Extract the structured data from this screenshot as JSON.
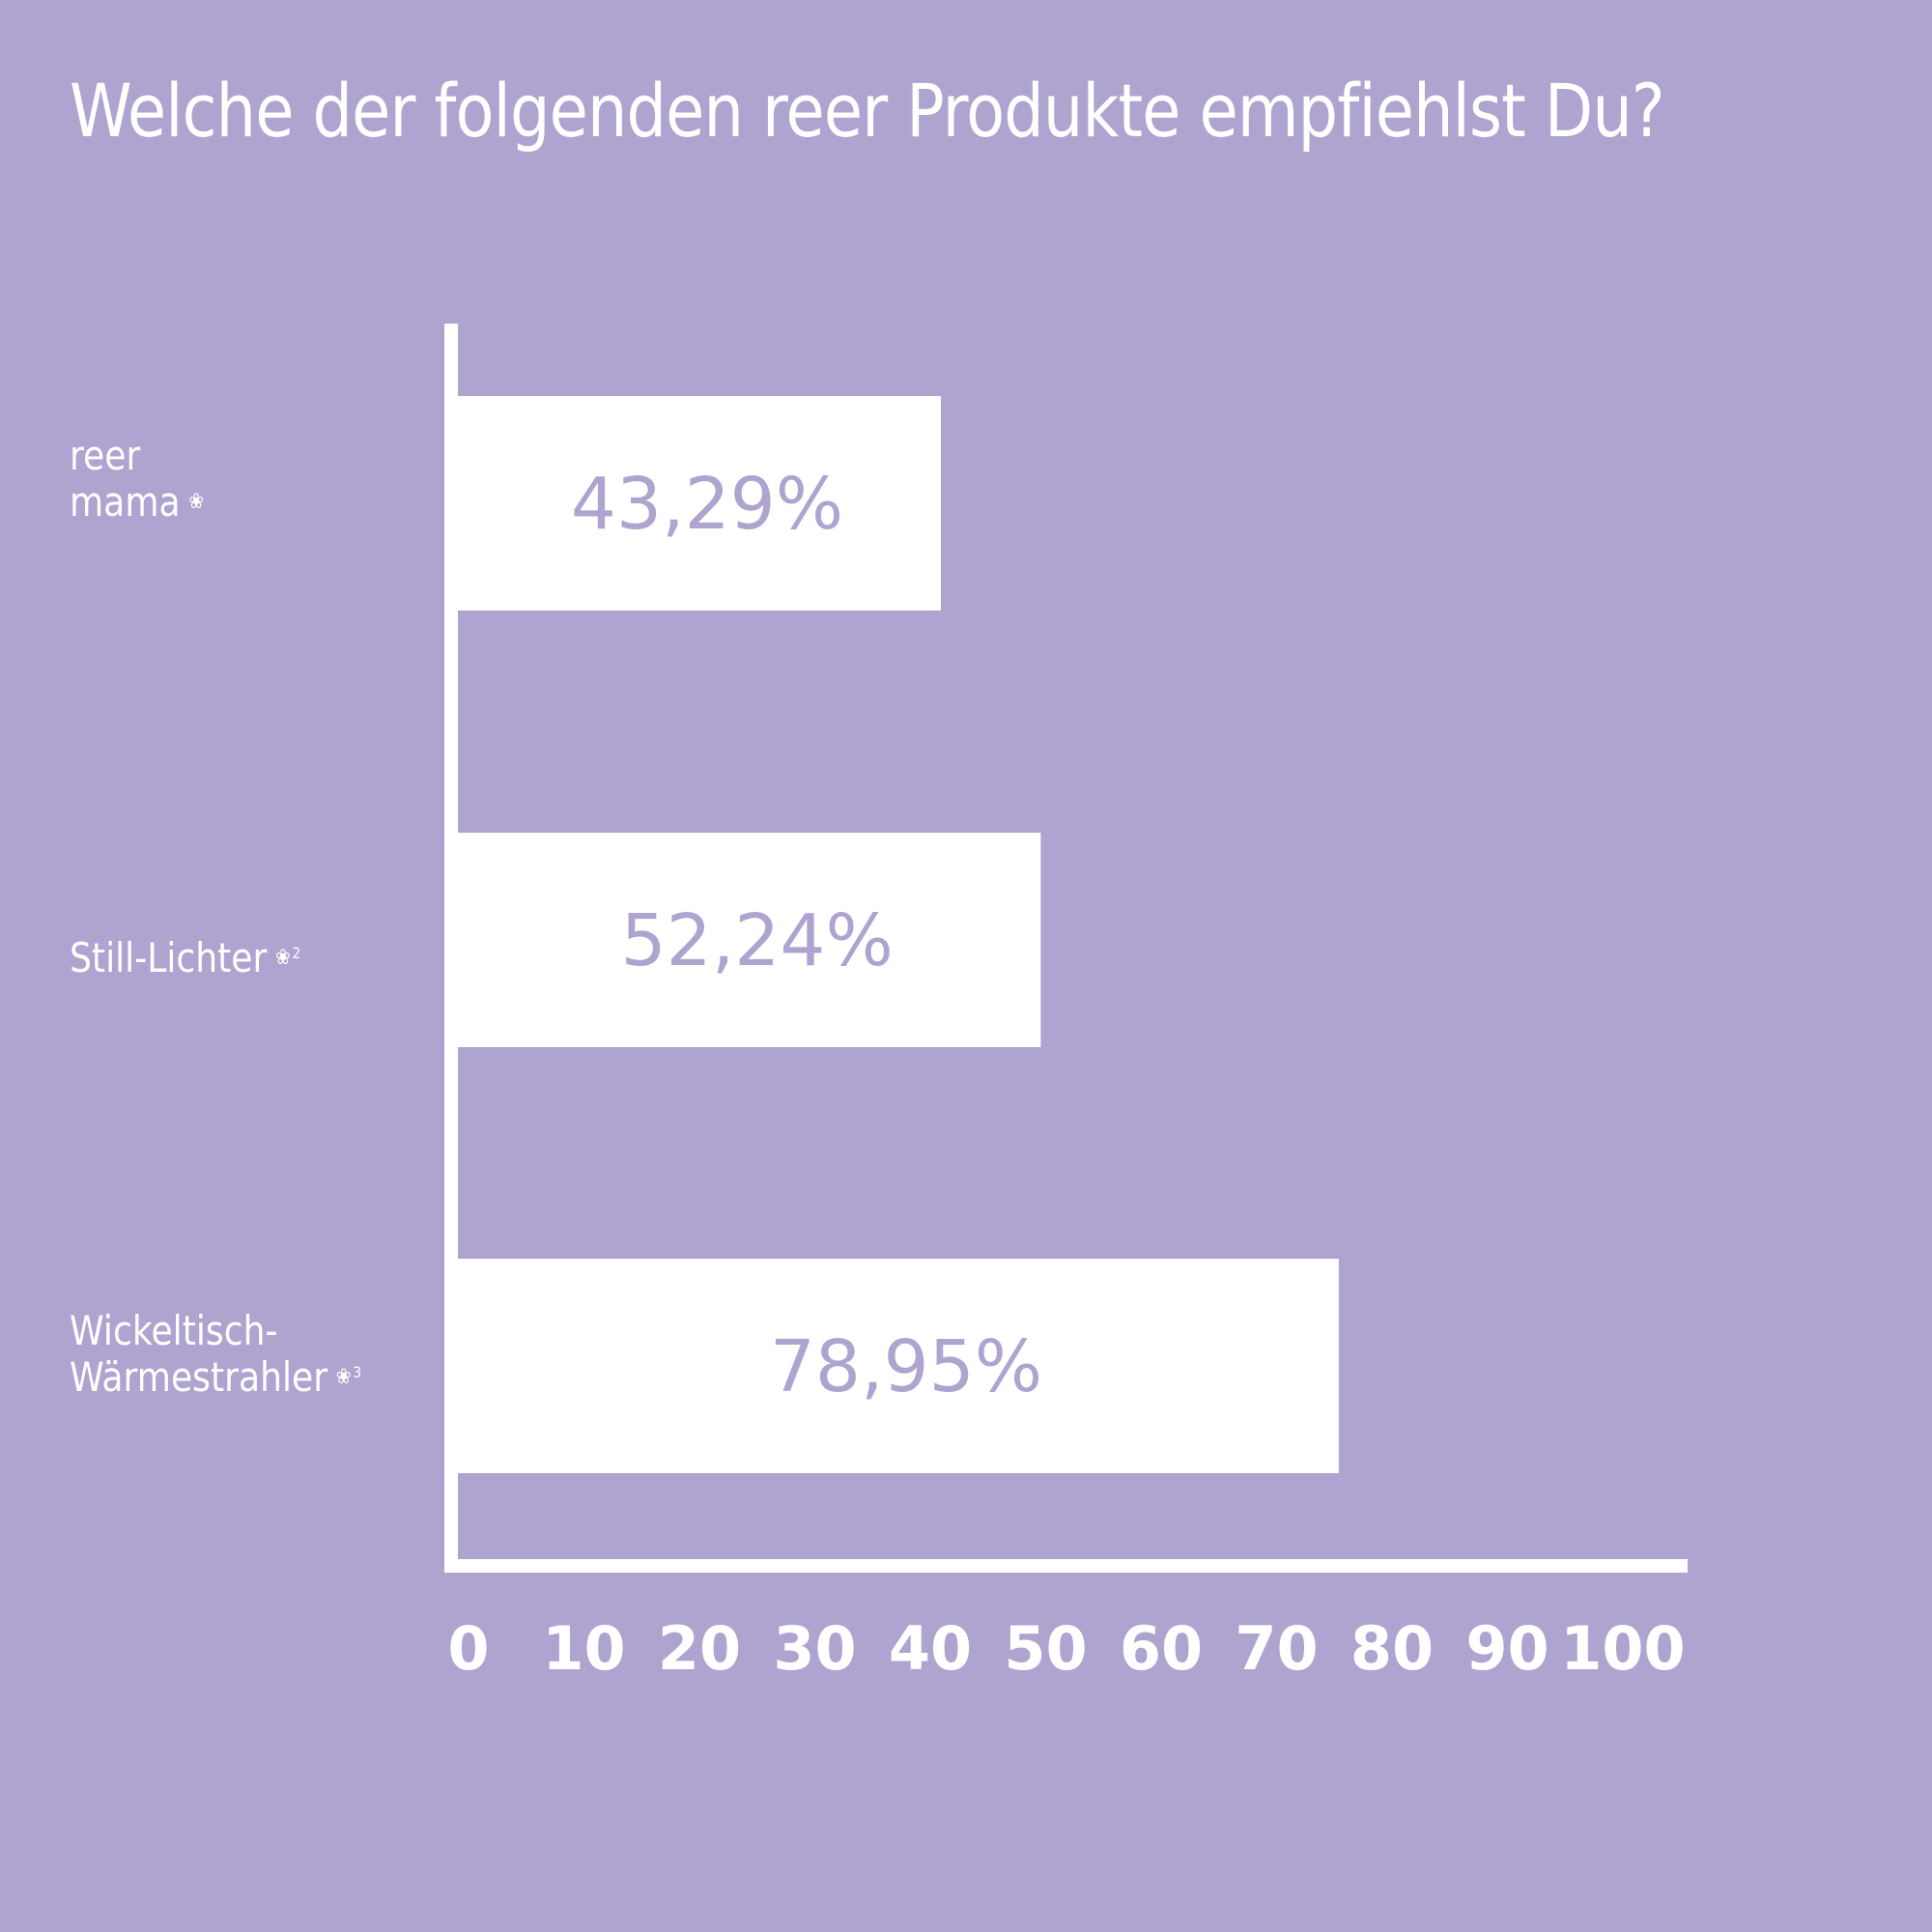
{
  "colors": {
    "background": "#afa3cf",
    "bar": "#ffffff",
    "axis": "#ffffff",
    "bar_label": "#afa3cf",
    "text": "#ffffff"
  },
  "chart_data": {
    "type": "bar",
    "orientation": "horizontal",
    "title": "Welche der folgenden reer Produkte empfiehlst Du?",
    "categories": [
      "reer mama",
      "Still-Lichter",
      "Wickeltisch-Wärmestrahler"
    ],
    "category_lines": [
      [
        "reer",
        "mama"
      ],
      [
        "Still-Lichter"
      ],
      [
        "Wickeltisch-",
        "Wärmestrahler"
      ]
    ],
    "footnotes": [
      {
        "mark": "flower-dots-icon",
        "number": ""
      },
      {
        "mark": "flower-dots-icon",
        "number": "2"
      },
      {
        "mark": "flower-dots-icon",
        "number": "3"
      }
    ],
    "values": [
      43.29,
      52.24,
      78.95
    ],
    "value_labels": [
      "43,29%",
      "52,24%",
      "78,95%"
    ],
    "xlabel": "",
    "ylabel": "",
    "xlim": [
      0,
      100
    ],
    "xticks": [
      0,
      10,
      20,
      30,
      40,
      50,
      60,
      70,
      80,
      90,
      100
    ],
    "grid": false,
    "legend": "none"
  }
}
